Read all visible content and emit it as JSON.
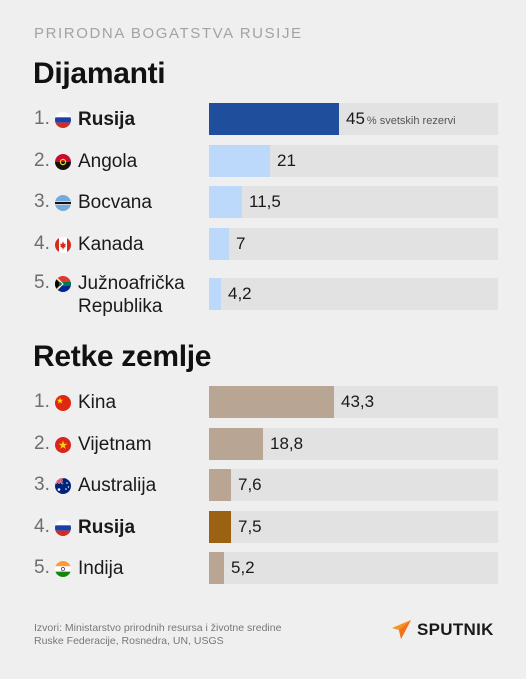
{
  "kicker": "PRIRODNA BOGATSTVA RUSIJE",
  "colors": {
    "highlight_diamonds": "#1f4e9c",
    "bar_diamonds": "#bcd8fb",
    "highlight_rare": "#9c6214",
    "bar_rare": "#b8a593",
    "track": "#e2e2e2"
  },
  "chart_data": [
    {
      "type": "bar",
      "title": "Dijamanti",
      "unit_note": "% svetskih rezervi",
      "xlim": [
        0,
        45
      ],
      "items": [
        {
          "rank": "1.",
          "flag": "russia-flag-icon",
          "name": "Rusija",
          "value": 45,
          "value_label": "45",
          "highlight": true
        },
        {
          "rank": "2.",
          "flag": "angola-flag-icon",
          "name": "Angola",
          "value": 21,
          "value_label": "21",
          "highlight": false
        },
        {
          "rank": "3.",
          "flag": "botswana-flag-icon",
          "name": "Bocvana",
          "value": 11.5,
          "value_label": "11,5",
          "highlight": false
        },
        {
          "rank": "4.",
          "flag": "canada-flag-icon",
          "name": "Kanada",
          "value": 7,
          "value_label": "7",
          "highlight": false
        },
        {
          "rank": "5.",
          "flag": "south-africa-flag-icon",
          "name": "Južnoafrička Republika",
          "name_lines": [
            "Južnoafrička",
            "Republika"
          ],
          "value": 4.2,
          "value_label": "4,2",
          "highlight": false
        }
      ]
    },
    {
      "type": "bar",
      "title": "Retke zemlje",
      "xlim": [
        0,
        45
      ],
      "items": [
        {
          "rank": "1.",
          "flag": "china-flag-icon",
          "name": "Kina",
          "value": 43.3,
          "value_label": "43,3",
          "highlight": false
        },
        {
          "rank": "2.",
          "flag": "vietnam-flag-icon",
          "name": "Vijetnam",
          "value": 18.8,
          "value_label": "18,8",
          "highlight": false
        },
        {
          "rank": "3.",
          "flag": "australia-flag-icon",
          "name": "Australija",
          "value": 7.6,
          "value_label": "7,6",
          "highlight": false
        },
        {
          "rank": "4.",
          "flag": "russia-flag-icon",
          "name": "Rusija",
          "value": 7.5,
          "value_label": "7,5",
          "highlight": true
        },
        {
          "rank": "5.",
          "flag": "india-flag-icon",
          "name": "Indija",
          "value": 5.2,
          "value_label": "5,2",
          "highlight": false
        }
      ]
    }
  ],
  "source": "Izvori: Ministarstvo prirodnih resursa i životne sredine Ruske Federacije, Rosnedra, UN, USGS",
  "logo": {
    "icon": "sputnik-logo-icon",
    "text": "SPUTNIK"
  }
}
